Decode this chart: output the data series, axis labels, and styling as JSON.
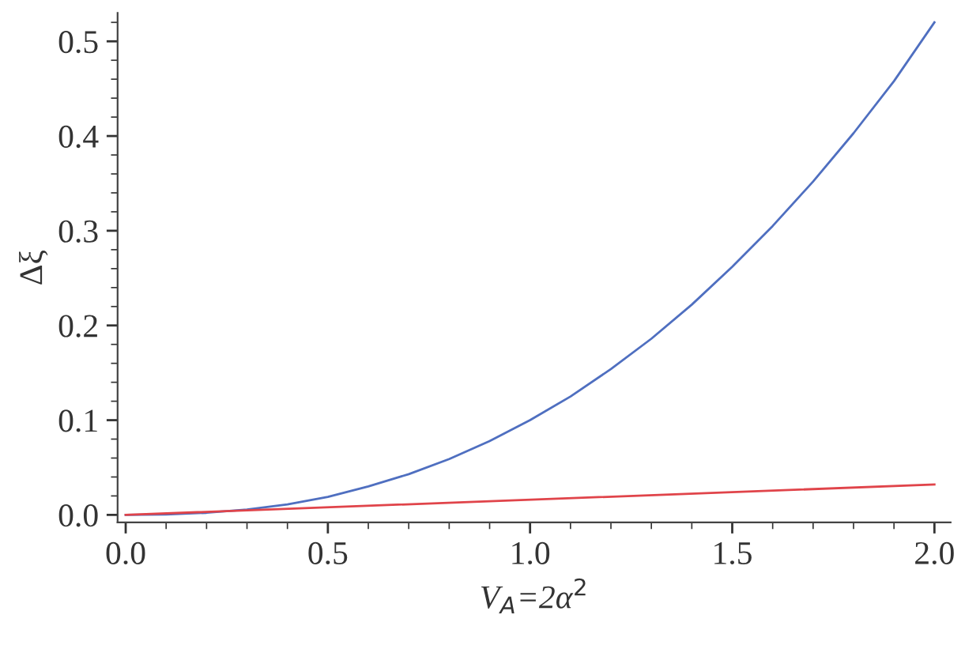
{
  "chart_data": {
    "type": "line",
    "xlabel": "V$_{A}$=2α$^{2}$",
    "ylabel": "Δξ",
    "xlim": [
      -0.02,
      2.04
    ],
    "ylim": [
      -0.008,
      0.53
    ],
    "xticks": [
      "0.0",
      0.5,
      "1.0",
      1.5,
      "2.0"
    ],
    "yticks": [
      "0.0",
      0.1,
      0.2,
      0.3,
      0.4,
      0.5
    ],
    "grid": false,
    "legend": false,
    "marker": "none",
    "line_style": "solid",
    "series": [
      {
        "color": "#4f6fc0",
        "x": [
          0,
          0.1,
          0.2,
          0.3,
          0.4,
          0.5,
          0.6,
          0.7,
          0.8,
          0.9,
          1.0,
          1.1,
          1.2,
          1.3,
          1.4,
          1.5,
          1.6,
          1.7,
          1.8,
          1.9,
          2.0
        ],
        "values": [
          0,
          0.0004,
          0.0022,
          0.0057,
          0.011,
          0.019,
          0.03,
          0.043,
          0.059,
          0.078,
          0.1,
          0.125,
          0.154,
          0.186,
          0.222,
          0.262,
          0.305,
          0.352,
          0.403,
          0.458,
          0.52
        ]
      },
      {
        "color": "#e0444a",
        "x": [
          0,
          2.0
        ],
        "values": [
          0,
          0.032
        ]
      }
    ]
  }
}
